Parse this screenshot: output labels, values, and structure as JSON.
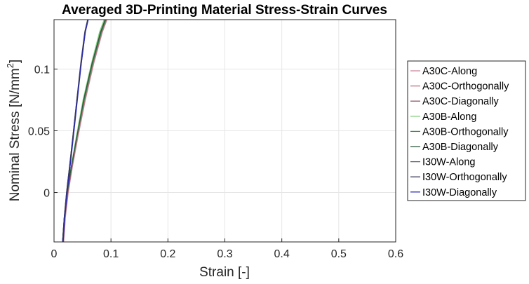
{
  "chart_data": {
    "type": "line",
    "title": "Averaged 3D-Printing Material Stress-Strain Curves",
    "xlabel": "Strain [-]",
    "ylabel_main": "Nominal Stress [N/mm",
    "ylabel_sup": "2",
    "ylabel_end": "]",
    "xlim": [
      0,
      0.6
    ],
    "ylim": [
      -0.04,
      0.14
    ],
    "xticks": [
      0,
      0.1,
      0.2,
      0.3,
      0.4,
      0.5,
      0.6
    ],
    "xtick_labels": [
      "0",
      "0.1",
      "0.2",
      "0.3",
      "0.4",
      "0.5",
      "0.6"
    ],
    "yticks": [
      0,
      0.05,
      0.1
    ],
    "ytick_labels": [
      "0",
      "0.05",
      "0.1"
    ],
    "grid": true,
    "legend_position": "outside-right",
    "series": [
      {
        "name": "A30C-Along",
        "color": "#c98a9a",
        "x": [
          0.017,
          0.02,
          0.025,
          0.032,
          0.042,
          0.055,
          0.07,
          0.085,
          0.093
        ],
        "y": [
          -0.04,
          -0.02,
          0.0,
          0.02,
          0.045,
          0.075,
          0.105,
          0.13,
          0.14
        ]
      },
      {
        "name": "A30C-Orthogonally",
        "color": "#b8707f",
        "x": [
          0.016,
          0.019,
          0.024,
          0.031,
          0.041,
          0.054,
          0.069,
          0.084,
          0.092
        ],
        "y": [
          -0.04,
          -0.02,
          0.0,
          0.02,
          0.045,
          0.075,
          0.105,
          0.13,
          0.14
        ]
      },
      {
        "name": "A30C-Diagonally",
        "color": "#8a5a6a",
        "x": [
          0.016,
          0.019,
          0.024,
          0.031,
          0.04,
          0.052,
          0.067,
          0.081,
          0.089
        ],
        "y": [
          -0.04,
          -0.02,
          0.0,
          0.02,
          0.045,
          0.075,
          0.105,
          0.13,
          0.14
        ]
      },
      {
        "name": "A30B-Along",
        "color": "#7fcf7a",
        "x": [
          0.015,
          0.018,
          0.023,
          0.03,
          0.039,
          0.051,
          0.066,
          0.08,
          0.088
        ],
        "y": [
          -0.04,
          -0.02,
          0.0,
          0.02,
          0.045,
          0.075,
          0.105,
          0.13,
          0.14
        ]
      },
      {
        "name": "A30B-Orthogonally",
        "color": "#3a8a55",
        "x": [
          0.015,
          0.018,
          0.023,
          0.03,
          0.04,
          0.053,
          0.068,
          0.083,
          0.091
        ],
        "y": [
          -0.04,
          -0.02,
          0.0,
          0.02,
          0.045,
          0.075,
          0.105,
          0.13,
          0.14
        ]
      },
      {
        "name": "A30B-Diagonally",
        "color": "#2f5a3f",
        "x": [
          0.015,
          0.018,
          0.023,
          0.03,
          0.04,
          0.052,
          0.067,
          0.082,
          0.09
        ],
        "y": [
          -0.04,
          -0.02,
          0.0,
          0.02,
          0.045,
          0.075,
          0.105,
          0.13,
          0.14
        ]
      },
      {
        "name": "I30W-Along",
        "color": "#5a5a72",
        "x": [
          0.015,
          0.018,
          0.022,
          0.027,
          0.033,
          0.04,
          0.048,
          0.055,
          0.06
        ],
        "y": [
          -0.04,
          -0.02,
          0.0,
          0.02,
          0.045,
          0.075,
          0.105,
          0.13,
          0.14
        ]
      },
      {
        "name": "I30W-Orthogonally",
        "color": "#3c3c58",
        "x": [
          0.015,
          0.018,
          0.022,
          0.027,
          0.033,
          0.04,
          0.047,
          0.054,
          0.059
        ],
        "y": [
          -0.04,
          -0.02,
          0.0,
          0.02,
          0.045,
          0.075,
          0.105,
          0.13,
          0.14
        ]
      },
      {
        "name": "I30W-Diagonally",
        "color": "#2a2ab0",
        "x": [
          0.016,
          0.019,
          0.023,
          0.028,
          0.034,
          0.041,
          0.048,
          0.055,
          0.06
        ],
        "y": [
          -0.04,
          -0.02,
          0.0,
          0.02,
          0.045,
          0.075,
          0.105,
          0.13,
          0.14
        ]
      }
    ]
  }
}
